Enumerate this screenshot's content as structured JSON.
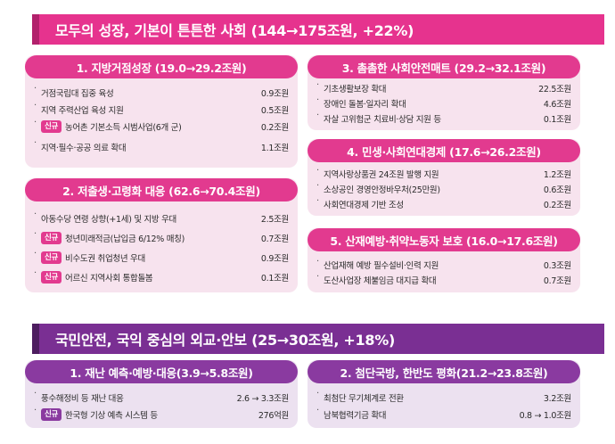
{
  "section1": {
    "title": "모두의 성장, 기본이 튼튼한 사회 (144→175조원, +22%)",
    "cards": [
      {
        "title": "1. 지방거점성장 (19.0→29.2조원)",
        "items": [
          {
            "tag": "",
            "label": "거점국립대 집중 육성",
            "value": "0.9조원"
          },
          {
            "tag": "",
            "label": "지역 주력산업 육성 지원",
            "value": "0.5조원"
          },
          {
            "tag": "신규",
            "label": "농어촌 기본소득 시범사업(6개 군)",
            "value": "0.2조원"
          },
          {
            "tag": "",
            "label": "지역·필수·공공 의료 확대",
            "value": "1.1조원"
          }
        ]
      },
      {
        "title": "2. 저출생·고령화 대응 (62.6→70.4조원)",
        "items": [
          {
            "tag": "",
            "label": "아동수당 연령 상향(+1세) 및 지방 우대",
            "value": "2.5조원"
          },
          {
            "tag": "신규",
            "label": "청년미래적금(납입금 6/12% 매칭)",
            "value": "0.7조원"
          },
          {
            "tag": "신규",
            "label": "비수도권 취업청년 우대",
            "value": "0.9조원"
          },
          {
            "tag": "신규",
            "label": "어르신 지역사회 통합돌봄",
            "value": "0.1조원"
          }
        ]
      },
      {
        "title": "3. 촘촘한 사회안전매트 (29.2→32.1조원)",
        "items": [
          {
            "tag": "",
            "label": "기초생활보장 확대",
            "value": "22.5조원"
          },
          {
            "tag": "",
            "label": "장애인 돌봄·일자리 확대",
            "value": "4.6조원"
          },
          {
            "tag": "",
            "label": "자살 고위험군 치료비·상담 지원 등",
            "value": "0.1조원"
          }
        ]
      },
      {
        "title": "4. 민생·사회연대경제 (17.6→26.2조원)",
        "items": [
          {
            "tag": "",
            "label": "지역사랑상품권 24조원 발행 지원",
            "value": "1.2조원"
          },
          {
            "tag": "",
            "label": "소상공인 경영안정바우처(25만원)",
            "value": "0.6조원"
          },
          {
            "tag": "",
            "label": "사회연대경제 기반 조성",
            "value": "0.2조원"
          }
        ]
      },
      {
        "title": "5. 산재예방·취약노동자 보호 (16.0→17.6조원)",
        "items": [
          {
            "tag": "",
            "label": "산업재해 예방 필수설비·인력 지원",
            "value": "0.3조원"
          },
          {
            "tag": "",
            "label": "도산사업장 체불임금 대지급 확대",
            "value": "0.7조원"
          }
        ]
      }
    ]
  },
  "section2": {
    "title": "국민안전, 국익 중심의 외교·안보 (25→30조원, +18%)",
    "cards": [
      {
        "title": "1. 재난 예측·예방·대응(3.9→5.8조원)",
        "items": [
          {
            "tag": "",
            "label": "풍수해정비 등 재난 대응",
            "value": "2.6 → 3.3조원"
          },
          {
            "tag": "신규",
            "label": "한국형 기상 예측 시스템 등",
            "value": "276억원"
          }
        ]
      },
      {
        "title": "2. 첨단국방, 한반도 평화(21.2→23.8조원)",
        "items": [
          {
            "tag": "",
            "label": "최첨단 무기체계로 전환",
            "value": "3.2조원"
          },
          {
            "tag": "",
            "label": "남북협력기금 확대",
            "value": "0.8 → 1.0조원"
          }
        ]
      }
    ]
  },
  "colors": {
    "pink": "#e6338e",
    "purple": "#7a2f93"
  }
}
